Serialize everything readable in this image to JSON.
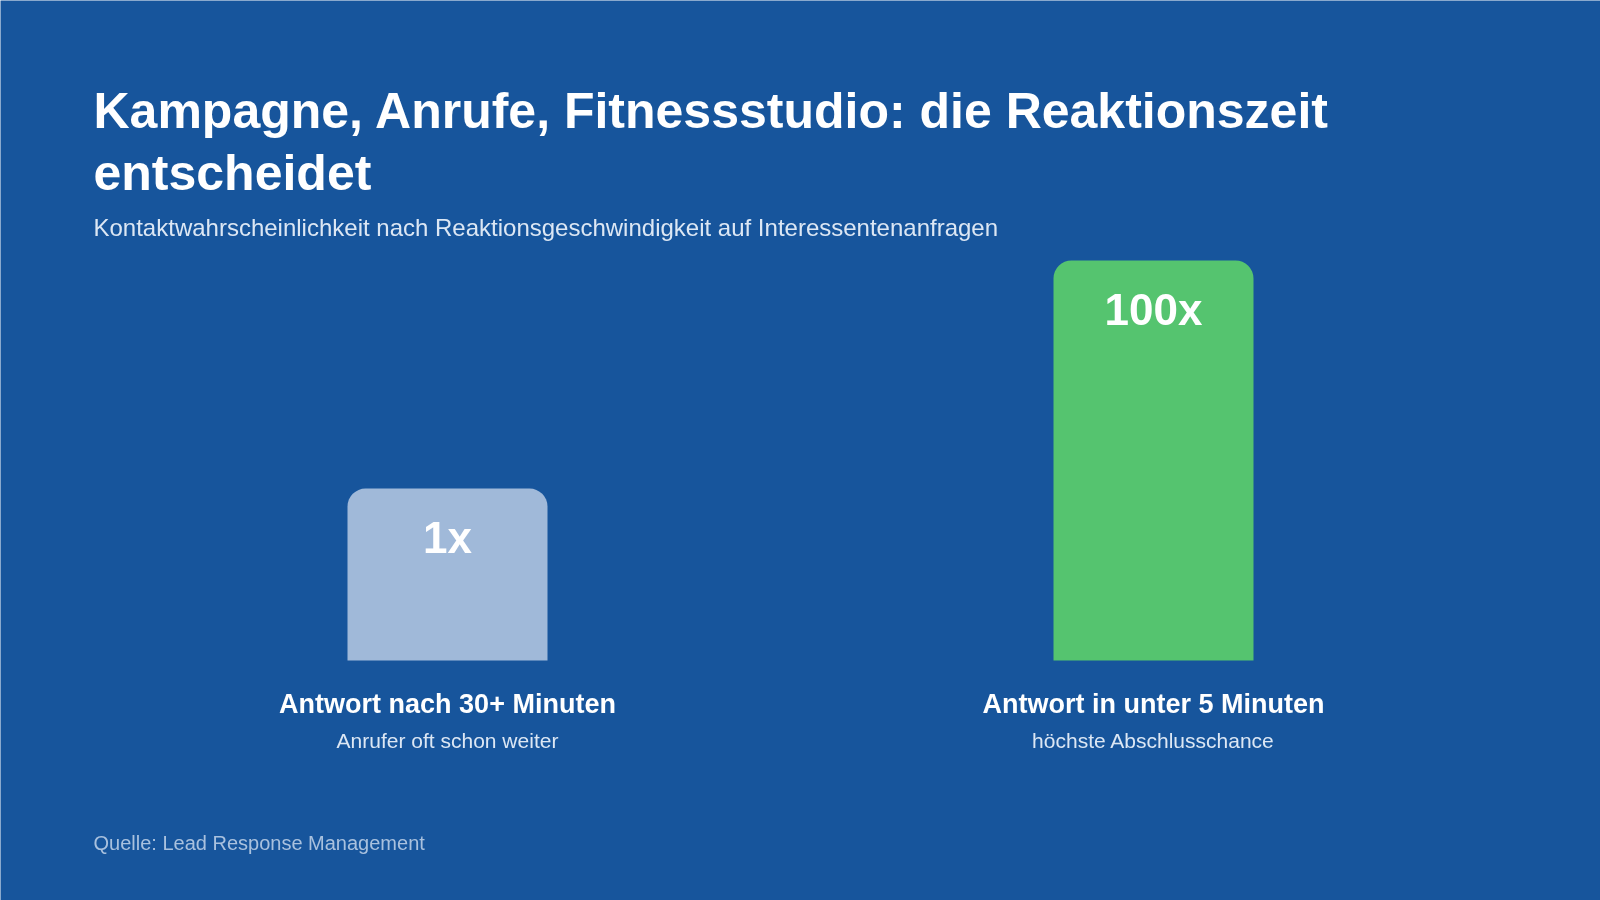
{
  "chart_data": {
    "type": "bar",
    "title": "Kampagne, Anrufe, Fitnessstudio: die Reaktionszeit entscheidet",
    "subtitle": "Kontaktwahrscheinlichkeit nach Reaktionsgeschwindigkeit auf Interessentenanfragen",
    "categories": [
      "Antwort nach 30+ Minuten",
      "Antwort in unter 5 Minuten"
    ],
    "values": [
      1,
      100
    ],
    "colors": [
      "#a0b9d9",
      "#55c46f"
    ],
    "log": true,
    "ylim": [
      0.031,
      100
    ],
    "value_labels": [
      "1x",
      "100x"
    ],
    "annotations": [
      "Anrufer oft schon weiter",
      "höchste Abschlusschance",
      "Quelle: Lead Response Management"
    ]
  }
}
